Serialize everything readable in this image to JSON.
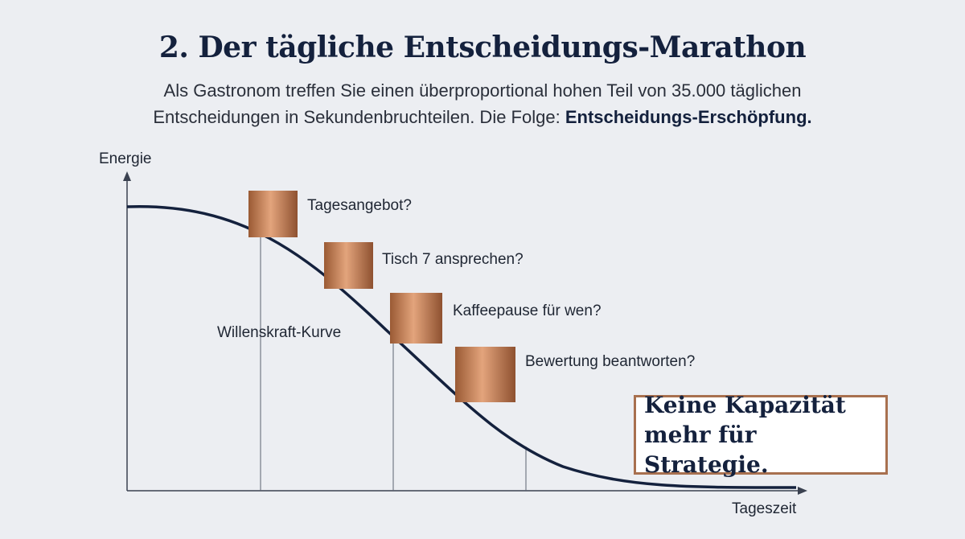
{
  "title": "2. Der tägliche Entscheidungs-Marathon",
  "subtitle": {
    "line1": "Als Gastronom treffen Sie einen überproportional hohen Teil von 35.000 täglichen",
    "line2_plain": "Entscheidungen in Sekundenbruchteilen. Die Folge: ",
    "line2_bold": "Entscheidungs-Erschöpfung."
  },
  "axes": {
    "y_label": "Energie",
    "x_label": "Tageszeit"
  },
  "curve_label": "Willenskraft-Kurve",
  "decisions": [
    "Tagesangebot?",
    "Tisch 7 ansprechen?",
    "Kaffeepause für wen?",
    "Bewertung beantworten?"
  ],
  "conclusion": {
    "line1": "Keine Kapazität",
    "line2": "mehr für Strategie."
  },
  "colors": {
    "curve": "#14213d",
    "copper": "#b97748",
    "frame": "#a8704f"
  }
}
